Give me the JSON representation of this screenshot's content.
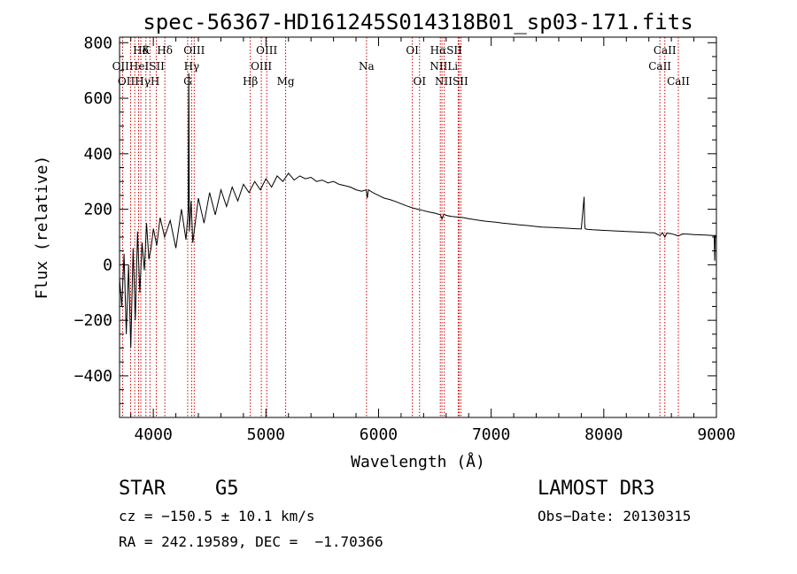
{
  "chart_data": {
    "type": "line",
    "title": "spec-56367-HD161245S014318B01_sp03-171.fits",
    "xlabel": "Wavelength (Å)",
    "ylabel": "Flux (relative)",
    "xlim": [
      3700,
      9000
    ],
    "ylim": [
      -550,
      820
    ],
    "xticks": [
      4000,
      5000,
      6000,
      7000,
      8000,
      9000
    ],
    "yticks": [
      -400,
      -200,
      0,
      200,
      400,
      600,
      800
    ],
    "series": [
      {
        "name": "spectrum",
        "x": [
          3700,
          3720,
          3740,
          3760,
          3780,
          3800,
          3820,
          3840,
          3860,
          3880,
          3900,
          3920,
          3940,
          3960,
          3980,
          4000,
          4030,
          4060,
          4100,
          4150,
          4200,
          4250,
          4290,
          4310,
          4315,
          4320,
          4335,
          4350,
          4400,
          4450,
          4500,
          4550,
          4600,
          4650,
          4700,
          4750,
          4800,
          4850,
          4900,
          4950,
          5000,
          5050,
          5100,
          5150,
          5200,
          5250,
          5300,
          5350,
          5400,
          5450,
          5500,
          5550,
          5600,
          5650,
          5700,
          5750,
          5800,
          5850,
          5890,
          5900,
          5910,
          5950,
          6000,
          6050,
          6100,
          6150,
          6200,
          6250,
          6300,
          6350,
          6400,
          6450,
          6500,
          6550,
          6563,
          6580,
          6600,
          6650,
          6700,
          6750,
          6800,
          6850,
          6900,
          6950,
          7000,
          7050,
          7100,
          7150,
          7200,
          7250,
          7300,
          7350,
          7400,
          7450,
          7500,
          7550,
          7600,
          7650,
          7700,
          7750,
          7800,
          7825,
          7830,
          7835,
          7850,
          7900,
          7950,
          8000,
          8050,
          8100,
          8150,
          8200,
          8250,
          8300,
          8350,
          8400,
          8450,
          8498,
          8520,
          8542,
          8560,
          8600,
          8662,
          8700,
          8750,
          8800,
          8850,
          8900,
          8950,
          8980,
          8985,
          8990,
          9000
        ],
        "y": [
          -50,
          -150,
          40,
          -250,
          0,
          -300,
          60,
          -200,
          120,
          -100,
          80,
          -20,
          150,
          20,
          60,
          130,
          70,
          170,
          100,
          160,
          60,
          200,
          90,
          200,
          690,
          120,
          230,
          80,
          240,
          150,
          260,
          180,
          270,
          210,
          280,
          230,
          290,
          260,
          300,
          270,
          310,
          280,
          320,
          300,
          330,
          305,
          320,
          310,
          315,
          300,
          305,
          295,
          300,
          290,
          285,
          280,
          270,
          265,
          270,
          240,
          270,
          260,
          250,
          240,
          235,
          228,
          220,
          212,
          205,
          200,
          195,
          190,
          186,
          180,
          165,
          182,
          178,
          174,
          172,
          170,
          166,
          163,
          160,
          157,
          155,
          153,
          150,
          148,
          146,
          144,
          142,
          140,
          138,
          136,
          135,
          134,
          133,
          132,
          131,
          130,
          129,
          245,
          150,
          130,
          128,
          126,
          125,
          124,
          123,
          122,
          121,
          120,
          119,
          118,
          117,
          116,
          115,
          105,
          116,
          100,
          114,
          112,
          104,
          111,
          110,
          109,
          108,
          107,
          106,
          105,
          15,
          105,
          100
        ]
      }
    ],
    "line_labels": [
      {
        "text": "Hδ",
        "x": 3889,
        "row": 1
      },
      {
        "text": "K",
        "x": 3934,
        "row": 1
      },
      {
        "text": "Hδ",
        "x": 4102,
        "row": 1
      },
      {
        "text": "OIII",
        "x": 4363,
        "row": 1
      },
      {
        "text": "OIII",
        "x": 5007,
        "row": 1
      },
      {
        "text": "OI",
        "x": 6300,
        "row": 1
      },
      {
        "text": "HαSII",
        "x": 6600,
        "row": 1
      },
      {
        "text": "CaII",
        "x": 8542,
        "row": 1
      },
      {
        "text": "OIIHeISII",
        "x": 3867,
        "row": 2
      },
      {
        "text": "Hγ",
        "x": 4340,
        "row": 2
      },
      {
        "text": "OIII",
        "x": 4959,
        "row": 2
      },
      {
        "text": "Na",
        "x": 5893,
        "row": 2
      },
      {
        "text": "NIILi",
        "x": 6580,
        "row": 2
      },
      {
        "text": "CaII",
        "x": 8498,
        "row": 2
      },
      {
        "text": "OIIHγH",
        "x": 3870,
        "row": 3
      },
      {
        "text": "G",
        "x": 4305,
        "row": 3
      },
      {
        "text": "Hβ",
        "x": 4861,
        "row": 3
      },
      {
        "text": "Mg",
        "x": 5175,
        "row": 3
      },
      {
        "text": "OI",
        "x": 6364,
        "row": 3
      },
      {
        "text": "NIISII",
        "x": 6648,
        "row": 3
      },
      {
        "text": "CaII",
        "x": 8662,
        "row": 3
      }
    ],
    "line_markers": [
      3727,
      3798,
      3835,
      3869,
      3889,
      3934,
      3970,
      4026,
      4102,
      4305,
      4340,
      4363,
      4861,
      4959,
      5007,
      5175,
      5893,
      6300,
      6364,
      6548,
      6563,
      6583,
      6707,
      6716,
      6731,
      8498,
      8542,
      8662
    ]
  },
  "info": {
    "object_class": "STAR",
    "subclass": "G5",
    "redshift": "cz = −150.5 ± 10.1 km/s",
    "coords": "RA = 242.19589, DEC =  −1.70366",
    "survey": "LAMOST DR3",
    "obs_date": "Obs−Date: 20130315"
  },
  "colors": {
    "spectrum": "#000000",
    "marker": "#cc0000",
    "axes": "#000000"
  }
}
